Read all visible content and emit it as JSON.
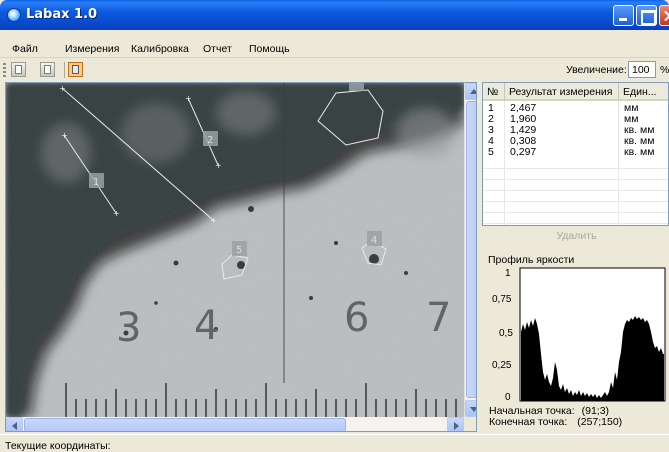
{
  "window": {
    "title": "Labax 1.0"
  },
  "menu": {
    "items": [
      "Файл",
      "Измерения",
      "Калибровка",
      "Отчет",
      "Помощь"
    ]
  },
  "toolbar": {
    "buttons": [
      "line-measure-icon",
      "area-measure-icon",
      "select-region-icon"
    ],
    "zoom_label": "Увеличение:",
    "zoom_value": "100",
    "zoom_unit": "%"
  },
  "image": {
    "ruler_numbers": [
      "3",
      "4",
      "6",
      "7"
    ],
    "markers": [
      "1",
      "2",
      "3",
      "4",
      "5"
    ]
  },
  "results_table": {
    "headers": [
      "№",
      "Результат измерения",
      "Един..."
    ],
    "rows": [
      {
        "n": "1",
        "value": "2,467",
        "unit": "мм"
      },
      {
        "n": "2",
        "value": "1,960",
        "unit": "мм"
      },
      {
        "n": "3",
        "value": "1,429",
        "unit": "кв. мм"
      },
      {
        "n": "4",
        "value": "0,308",
        "unit": "кв. мм"
      },
      {
        "n": "5",
        "value": "0,297",
        "unit": "кв. мм"
      }
    ]
  },
  "delete_button": "Удалить",
  "profile": {
    "title": "Профиль яркости",
    "y_ticks": [
      "1",
      "0,75",
      "0,5",
      "0,25",
      "0"
    ],
    "start_label": "Начальная точка:",
    "start_value": "(91;3)",
    "end_label": "Конечная точка:",
    "end_value": "(257;150)"
  },
  "status": {
    "text": "Текущие координаты:"
  }
}
